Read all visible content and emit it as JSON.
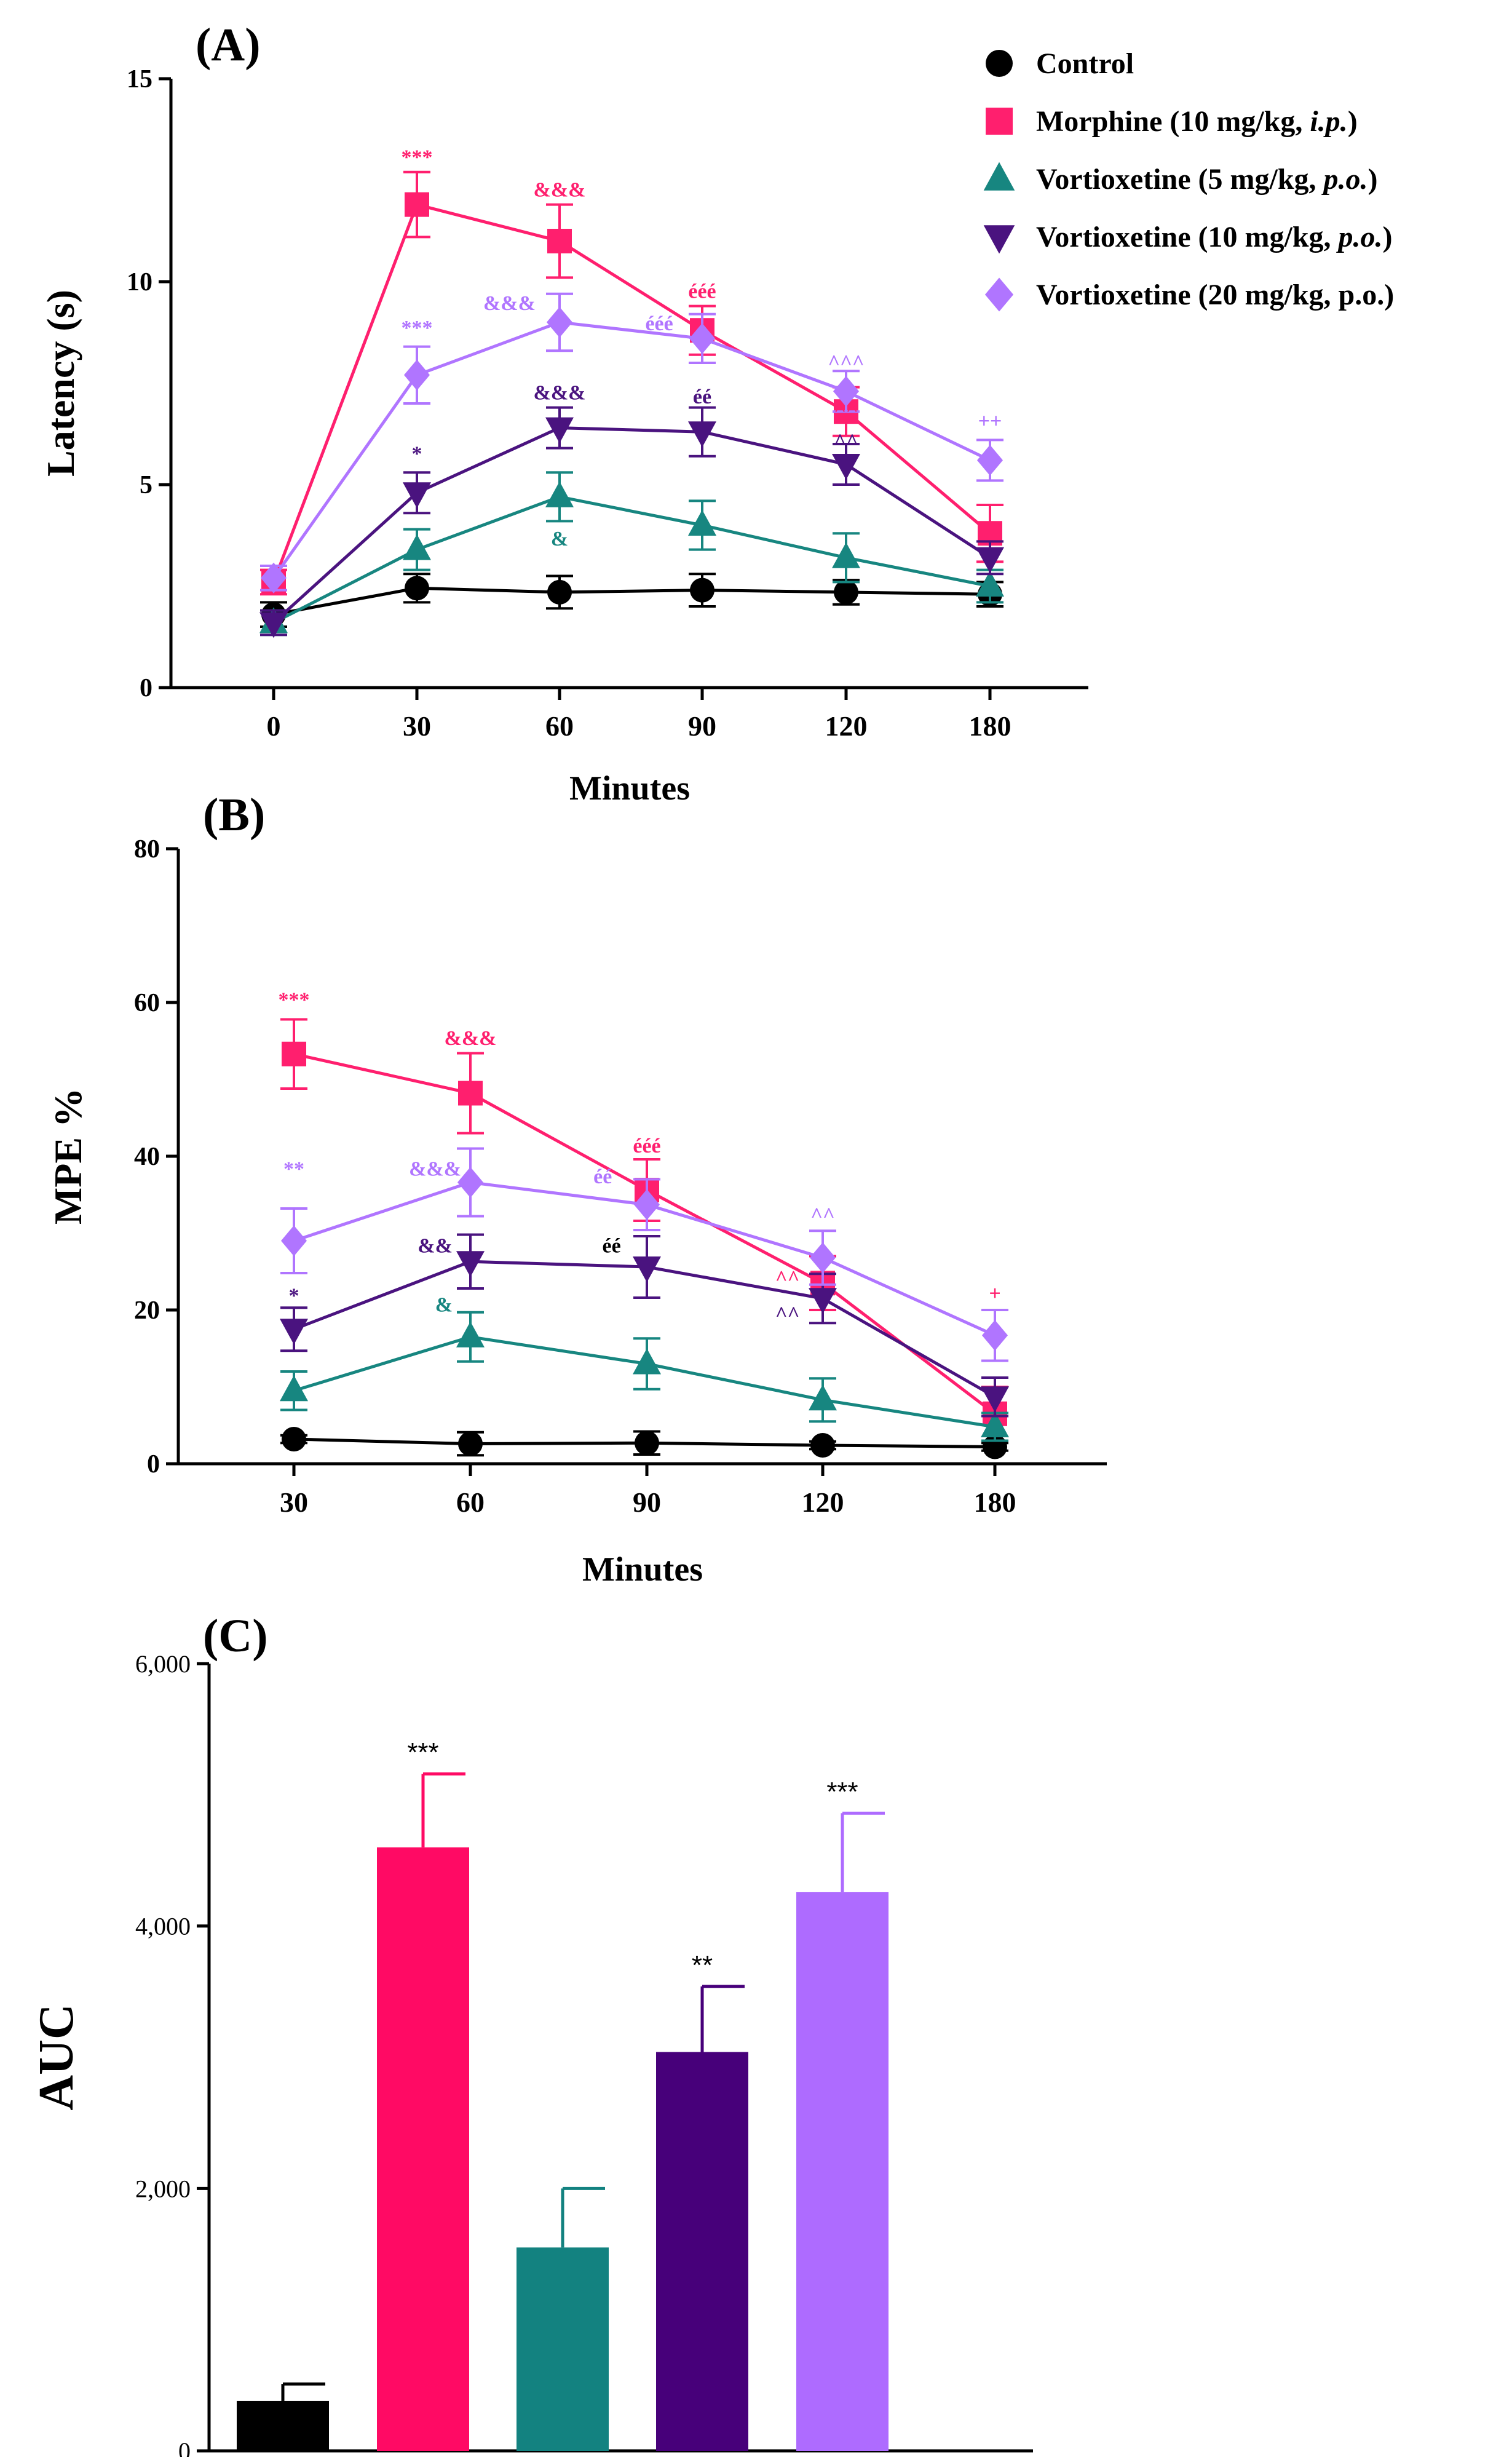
{
  "legend": [
    {
      "label": "Control",
      "color": "#000000",
      "marker": "circle"
    },
    {
      "label": "Morphine (10 mg/kg, i.p.)",
      "color": "#ff1f6e",
      "marker": "square"
    },
    {
      "label": "Vortioxetine (5 mg/kg, p.o.)",
      "color": "#178680",
      "marker": "triangle-up"
    },
    {
      "label": "Vortioxetine (10 mg/kg, p.o.)",
      "color": "#4a137f",
      "marker": "triangle-down"
    },
    {
      "label": "Vortioxetine (20 mg/kg, p.o.)",
      "color": "#b075ff",
      "marker": "diamond"
    }
  ],
  "chart_data": [
    {
      "type": "line",
      "panel_label": "(A)",
      "title": "",
      "xlabel": "Minutes",
      "ylabel": "Latency (s)",
      "categories": [
        "0",
        "30",
        "60",
        "90",
        "120",
        "180"
      ],
      "ylim": [
        0,
        15
      ],
      "yticks": [
        0,
        5,
        10,
        15
      ],
      "series": [
        {
          "name": "Control",
          "color": "#000000",
          "marker": "circle",
          "values": [
            1.8,
            2.45,
            2.35,
            2.4,
            2.35,
            2.3
          ],
          "errors": [
            0.3,
            0.35,
            0.4,
            0.4,
            0.3,
            0.3
          ]
        },
        {
          "name": "Morphine (10 mg/kg, i.p.)",
          "color": "#ff1f6e",
          "marker": "square",
          "values": [
            2.6,
            11.9,
            11.0,
            8.8,
            6.8,
            3.8
          ],
          "errors": [
            0.3,
            0.8,
            0.9,
            0.6,
            0.6,
            0.7
          ]
        },
        {
          "name": "Vortioxetine (5 mg/kg, p.o.)",
          "color": "#178680",
          "marker": "triangle-up",
          "values": [
            1.6,
            3.4,
            4.7,
            4.0,
            3.2,
            2.5
          ],
          "errors": [
            0.3,
            0.5,
            0.6,
            0.6,
            0.6,
            0.4
          ]
        },
        {
          "name": "Vortioxetine (10 mg/kg, p.o.)",
          "color": "#4a137f",
          "marker": "triangle-down",
          "values": [
            1.6,
            4.8,
            6.4,
            6.3,
            5.5,
            3.2
          ],
          "errors": [
            0.3,
            0.5,
            0.5,
            0.6,
            0.5,
            0.4
          ]
        },
        {
          "name": "Vortioxetine (20 mg/kg, p.o.)",
          "color": "#b075ff",
          "marker": "diamond",
          "values": [
            2.7,
            7.7,
            9.0,
            8.6,
            7.3,
            5.6
          ],
          "errors": [
            0.3,
            0.7,
            0.7,
            0.6,
            0.5,
            0.5
          ]
        }
      ],
      "annotations": [
        {
          "text": "***",
          "x": "30",
          "y": 12.9,
          "color": "#ff1f6e"
        },
        {
          "text": "&&&",
          "x": "60",
          "y": 12.1,
          "color": "#ff1f6e"
        },
        {
          "text": "ééé",
          "x": "90",
          "y": 9.6,
          "color": "#ff1f6e"
        },
        {
          "text": "^^^",
          "x": "120",
          "y": 7.85,
          "color": "#b075ff"
        },
        {
          "text": "^^",
          "x": "120",
          "y": 6.7,
          "color": "#ff1f6e"
        },
        {
          "text": "^^",
          "x": "120",
          "y": 5.9,
          "color": "#4a137f"
        },
        {
          "text": "++",
          "x": "180",
          "y": 6.4,
          "color": "#b075ff"
        },
        {
          "text": "***",
          "x": "30",
          "y": 8.7,
          "color": "#b075ff"
        },
        {
          "text": "&&&",
          "x": "60",
          "y": 9.3,
          "color": "#b075ff",
          "dx": -0.35
        },
        {
          "text": "ééé",
          "x": "90",
          "y": 8.8,
          "color": "#b075ff",
          "dx": -0.3
        },
        {
          "text": "*",
          "x": "30",
          "y": 5.6,
          "color": "#4a137f"
        },
        {
          "text": "&&&",
          "x": "60",
          "y": 7.1,
          "color": "#4a137f"
        },
        {
          "text": "éé",
          "x": "90",
          "y": 7.0,
          "color": "#4a137f"
        },
        {
          "text": "&",
          "x": "60",
          "y": 3.5,
          "color": "#178680"
        }
      ]
    },
    {
      "type": "line",
      "panel_label": "(B)",
      "title": "",
      "xlabel": "Minutes",
      "ylabel": "MPE %",
      "categories": [
        "30",
        "60",
        "90",
        "120",
        "180"
      ],
      "ylim": [
        0,
        80
      ],
      "yticks": [
        0,
        20,
        40,
        60,
        80
      ],
      "series": [
        {
          "name": "Control",
          "color": "#000000",
          "marker": "circle",
          "values": [
            3.2,
            2.6,
            2.7,
            2.4,
            2.2
          ],
          "errors": [
            0.5,
            1.5,
            1.5,
            0.5,
            0.5
          ]
        },
        {
          "name": "Morphine (10 mg/kg, i.p.)",
          "color": "#ff1f6e",
          "marker": "square",
          "values": [
            53.3,
            48.2,
            35.6,
            23.5,
            6.5
          ],
          "errors": [
            4.5,
            5.2,
            4.0,
            3.5,
            3.5
          ]
        },
        {
          "name": "Vortioxetine (5 mg/kg, p.o.)",
          "color": "#178680",
          "marker": "triangle-up",
          "values": [
            9.5,
            16.5,
            13.0,
            8.3,
            4.8
          ],
          "errors": [
            2.5,
            3.2,
            3.3,
            2.8,
            1.8
          ]
        },
        {
          "name": "Vortioxetine (10 mg/kg, p.o.)",
          "color": "#4a137f",
          "marker": "triangle-down",
          "values": [
            17.5,
            26.3,
            25.6,
            21.5,
            8.7
          ],
          "errors": [
            2.8,
            3.5,
            4.0,
            3.2,
            2.5
          ]
        },
        {
          "name": "Vortioxetine (20 mg/kg, p.o.)",
          "color": "#b075ff",
          "marker": "diamond",
          "values": [
            29.0,
            36.6,
            33.7,
            26.8,
            16.7
          ],
          "errors": [
            4.2,
            4.4,
            3.3,
            3.5,
            3.3
          ]
        }
      ],
      "annotations": [
        {
          "text": "***",
          "x": "30",
          "y": 59.5,
          "color": "#ff1f6e"
        },
        {
          "text": "&&&",
          "x": "60",
          "y": 54.5,
          "color": "#ff1f6e"
        },
        {
          "text": "ééé",
          "x": "90",
          "y": 40.5,
          "color": "#ff1f6e"
        },
        {
          "text": "éé",
          "x": "90",
          "y": 36.5,
          "color": "#b075ff",
          "dx": -0.25
        },
        {
          "text": "^^",
          "x": "120",
          "y": 31.5,
          "color": "#b075ff"
        },
        {
          "text": "^^",
          "x": "120",
          "y": 23.3,
          "color": "#ff1f6e",
          "dx": -0.2
        },
        {
          "text": "^^",
          "x": "120",
          "y": 18.6,
          "color": "#4a137f",
          "dx": -0.2
        },
        {
          "text": "+",
          "x": "180",
          "y": 21.3,
          "color": "#ff1f6e"
        },
        {
          "text": "**",
          "x": "30",
          "y": 37.5,
          "color": "#b075ff"
        },
        {
          "text": "&&&",
          "x": "60",
          "y": 37.5,
          "color": "#b075ff",
          "dx": -0.2
        },
        {
          "text": "&&",
          "x": "60",
          "y": 27.5,
          "color": "#4a137f",
          "dx": -0.2
        },
        {
          "text": "éé",
          "x": "90",
          "y": 27.5,
          "color": "#000000",
          "dx": -0.2
        },
        {
          "text": "*",
          "x": "30",
          "y": 21.0,
          "color": "#4a137f"
        },
        {
          "text": "&",
          "x": "60",
          "y": 19.8,
          "color": "#178680",
          "dx": -0.15
        }
      ]
    },
    {
      "type": "bar",
      "panel_label": "(C)",
      "title": "",
      "xlabel": "",
      "ylabel": "AUC",
      "categories": [
        "Control",
        "Morphine (10 mg/kg, i.p.)",
        "Vortioxetine (5 mg/kg, p.o.)",
        "Vortioxetine (10 mg/kg, p.o.)",
        "Vortioxetine (20 mg/kg, p.o.)"
      ],
      "values": [
        380,
        4600,
        1550,
        3040,
        4260
      ],
      "errors": [
        130,
        560,
        450,
        500,
        600
      ],
      "colors": [
        "#000000",
        "#ff0a64",
        "#138280",
        "#47007a",
        "#ae6bff"
      ],
      "significance": [
        "",
        "***",
        "",
        "**",
        "***"
      ],
      "ylim": [
        0,
        6000
      ],
      "yticks": [
        0,
        2000,
        4000,
        6000
      ],
      "ytick_labels": [
        "0",
        "2,000",
        "4,000",
        "6,000"
      ]
    }
  ]
}
